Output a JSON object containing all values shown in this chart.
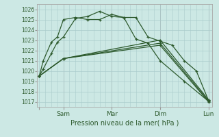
{
  "background_color": "#cce8e4",
  "grid_color": "#aacccc",
  "line_color": "#2d5a2d",
  "xlabel": "Pression niveau de la mer( hPa )",
  "ylim": [
    1016.5,
    1026.5
  ],
  "yticks": [
    1017,
    1018,
    1019,
    1020,
    1021,
    1022,
    1023,
    1024,
    1025,
    1026
  ],
  "vline_positions": [
    24,
    72,
    120,
    168
  ],
  "line1_x": [
    0,
    4,
    12,
    18,
    24,
    36,
    48,
    60,
    72,
    84,
    96,
    108,
    120,
    144,
    168
  ],
  "line1_y": [
    1019.5,
    1020.2,
    1021.7,
    1022.8,
    1023.3,
    1025.1,
    1025.3,
    1025.8,
    1025.3,
    1025.2,
    1023.1,
    1022.7,
    1021.0,
    1019.0,
    1017.05
  ],
  "line2_x": [
    0,
    4,
    12,
    18,
    24,
    36,
    48,
    60,
    72,
    84,
    96,
    108,
    120,
    132,
    144,
    156,
    168
  ],
  "line2_y": [
    1019.5,
    1021.0,
    1022.8,
    1023.3,
    1025.0,
    1025.2,
    1025.0,
    1025.0,
    1025.5,
    1025.2,
    1025.2,
    1023.3,
    1022.9,
    1022.5,
    1021.0,
    1020.0,
    1017.15
  ],
  "line3_x": [
    0,
    24,
    120,
    168
  ],
  "line3_y": [
    1019.5,
    1021.2,
    1022.5,
    1017.0
  ],
  "line4_x": [
    0,
    24,
    120,
    168
  ],
  "line4_y": [
    1019.5,
    1021.2,
    1022.7,
    1017.1
  ],
  "line5_x": [
    0,
    24,
    120,
    168
  ],
  "line5_y": [
    1019.5,
    1021.2,
    1023.0,
    1017.2
  ],
  "xtick_positions": [
    0,
    24,
    72,
    120,
    168
  ],
  "xtick_labels": [
    "",
    "Sam",
    "Mar",
    "Dim",
    "Lun"
  ]
}
